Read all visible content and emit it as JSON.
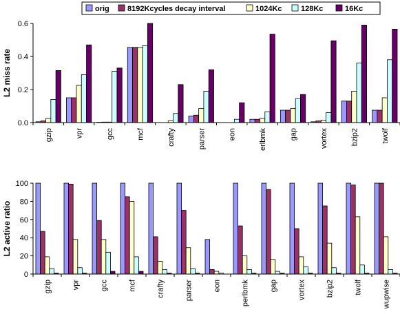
{
  "legend": [
    {
      "name": "orig",
      "color": "#9999FF"
    },
    {
      "name": "8192Kcycles decay interval",
      "color": "#993366"
    },
    {
      "name": "1024Kc",
      "color": "#FFFFCC"
    },
    {
      "name": "128Kc",
      "color": "#CCFFFF"
    },
    {
      "name": "16Kc",
      "color": "#660066"
    }
  ],
  "chart_data": [
    {
      "type": "bar",
      "ylabel": "L2 miss rate",
      "ylim": [
        0,
        0.6
      ],
      "yticks": [
        "0.0",
        "0.2",
        "0.4",
        "0.6"
      ],
      "categories": [
        "gzip",
        "vpr",
        "gcc",
        "mcf",
        "crafty",
        "parser",
        "eon",
        "perlbmk",
        "gap",
        "vortex",
        "bzip2",
        "twolf"
      ],
      "category_labels": [
        "gzip",
        "vpr",
        "gcc",
        "mcf",
        "crafty",
        "parser",
        "eon",
        "erlbmk",
        "gap",
        "vortex",
        "bzip2",
        "twolf"
      ],
      "grid": false,
      "legend_position": "top",
      "series": [
        {
          "name": "orig",
          "values": [
            0.005,
            0.15,
            0.002,
            0.455,
            0.0,
            0.04,
            0.0,
            0.02,
            0.075,
            0.005,
            0.13,
            0.075
          ]
        },
        {
          "name": "8192Kcycles decay interval",
          "values": [
            0.01,
            0.15,
            0.003,
            0.455,
            0.0,
            0.045,
            0.0,
            0.02,
            0.075,
            0.01,
            0.13,
            0.075
          ]
        },
        {
          "name": "1024Kc",
          "values": [
            0.025,
            0.225,
            0.003,
            0.455,
            0.01,
            0.085,
            0.0,
            0.025,
            0.085,
            0.015,
            0.19,
            0.15
          ]
        },
        {
          "name": "128Kc",
          "values": [
            0.14,
            0.29,
            0.31,
            0.465,
            0.055,
            0.19,
            0.02,
            0.065,
            0.145,
            0.06,
            0.36,
            0.38
          ]
        },
        {
          "name": "16Kc",
          "values": [
            0.315,
            0.47,
            0.33,
            0.605,
            0.23,
            0.32,
            0.12,
            0.535,
            0.17,
            0.495,
            0.59,
            0.565
          ]
        }
      ]
    },
    {
      "type": "bar",
      "ylabel": "L2 active ratio",
      "ylim": [
        0,
        100
      ],
      "yticks": [
        "0",
        "20",
        "40",
        "60",
        "80",
        "100"
      ],
      "categories": [
        "gzip",
        "vpr",
        "gcc",
        "mcf",
        "crafty",
        "parser",
        "eon",
        "perlbmk",
        "gap",
        "vortex",
        "bzip2",
        "twolf",
        "wupwise"
      ],
      "category_labels": [
        "gzip",
        "vpr",
        "gcc",
        "mcf",
        "crafty",
        "parser",
        "eon",
        "perlbmk",
        "gap",
        "vortex",
        "bzip2",
        "twolf",
        "wupwise"
      ],
      "grid": false,
      "series": [
        {
          "name": "orig",
          "values": [
            100,
            100,
            100,
            100,
            100,
            100,
            38,
            100,
            100,
            100,
            100,
            100,
            100
          ]
        },
        {
          "name": "8192Kcycles decay interval",
          "values": [
            47,
            99,
            59,
            85,
            41,
            70,
            5,
            53,
            93,
            50,
            75,
            98,
            100
          ]
        },
        {
          "name": "1024Kc",
          "values": [
            19,
            38,
            38,
            80,
            14,
            29,
            3,
            20,
            16,
            19,
            34,
            63,
            41
          ]
        },
        {
          "name": "128Kc",
          "values": [
            6,
            7,
            24,
            19,
            5,
            6,
            1,
            5,
            3,
            8,
            7,
            10,
            5
          ]
        },
        {
          "name": "16Kc",
          "values": [
            1,
            1,
            3,
            3,
            1,
            1,
            0,
            1,
            1,
            1,
            1,
            1,
            1
          ]
        }
      ]
    }
  ]
}
